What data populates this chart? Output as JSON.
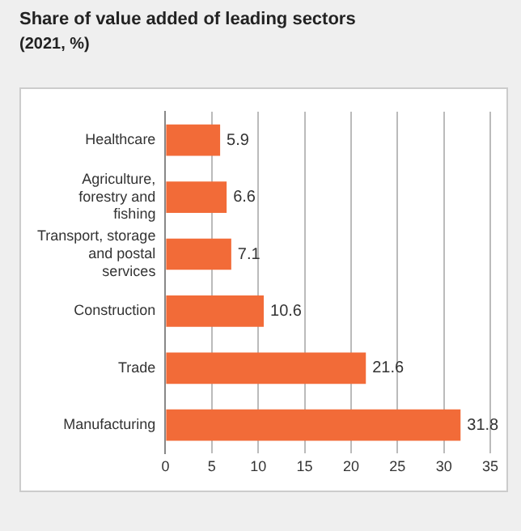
{
  "chart_data": {
    "type": "bar",
    "orientation": "horizontal",
    "title": "Share of value added of leading sectors",
    "subtitle": "(2021, %)",
    "categories": [
      "Healthcare",
      "Agriculture, forestry and fishing",
      "Transport, storage and postal services",
      "Construction",
      "Trade",
      "Manufacturing"
    ],
    "values": [
      5.9,
      6.6,
      7.1,
      10.6,
      21.6,
      31.8
    ],
    "color": "#f26b38",
    "xlim": [
      0,
      35
    ],
    "xticks": [
      0,
      5,
      10,
      15,
      20,
      25,
      30,
      35
    ],
    "grid": "x",
    "data_labels": true
  }
}
